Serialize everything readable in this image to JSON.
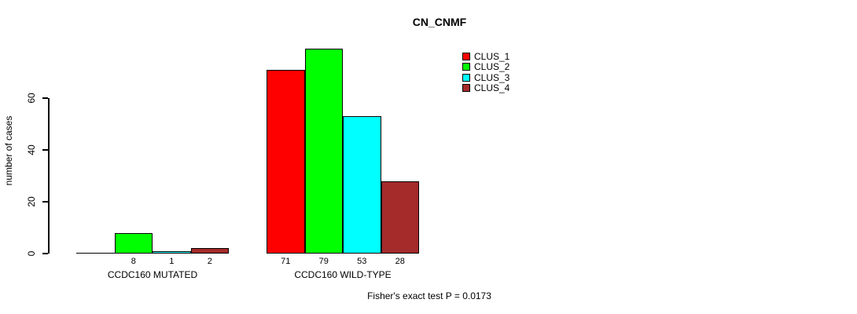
{
  "chart_data": {
    "type": "bar",
    "title": "CN_CNMF",
    "ylabel": "number of cases",
    "xlabel": "",
    "yticks": [
      0,
      20,
      40,
      60
    ],
    "ylim": [
      0,
      79
    ],
    "grid": false,
    "legend_position": "top-right",
    "series": [
      {
        "name": "CLUS_1",
        "color": "#FF0000"
      },
      {
        "name": "CLUS_2",
        "color": "#00FF00"
      },
      {
        "name": "CLUS_3",
        "color": "#00FFFF"
      },
      {
        "name": "CLUS_4",
        "color": "#A52A2A"
      }
    ],
    "groups": [
      {
        "label": "CCDC160 MUTATED",
        "values": [
          0,
          8,
          1,
          2
        ],
        "value_labels": [
          "",
          "8",
          "1",
          "2"
        ]
      },
      {
        "label": "CCDC160 WILD-TYPE",
        "values": [
          71,
          79,
          53,
          28
        ],
        "value_labels": [
          "71",
          "79",
          "53",
          "28"
        ]
      }
    ],
    "annotation": "Fisher's exact test P = 0.0173"
  }
}
